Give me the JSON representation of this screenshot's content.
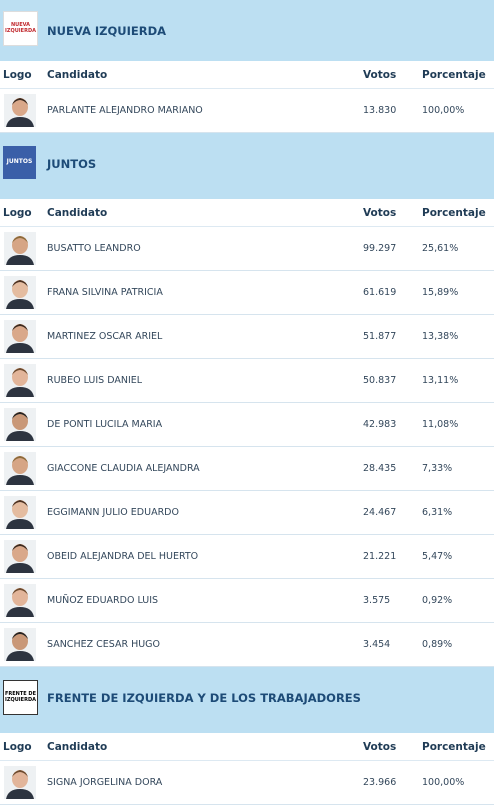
{
  "columns": [
    "Logo",
    "Candidato",
    "Votos",
    "Porcentaje"
  ],
  "parties": [
    {
      "name": "NUEVA IZQUIERDA",
      "logo_text": "NUEVA IZQUIERDA",
      "candidates": [
        {
          "name": "PARLANTE ALEJANDRO MARIANO",
          "votes": "13.830",
          "percent": "100,00%"
        }
      ]
    },
    {
      "name": "JUNTOS",
      "logo_text": "JUNTOS",
      "candidates": [
        {
          "name": "BUSATTO LEANDRO",
          "votes": "99.297",
          "percent": "25,61%"
        },
        {
          "name": "FRANA SILVINA PATRICIA",
          "votes": "61.619",
          "percent": "15,89%"
        },
        {
          "name": "MARTINEZ OSCAR ARIEL",
          "votes": "51.877",
          "percent": "13,38%"
        },
        {
          "name": "RUBEO LUIS DANIEL",
          "votes": "50.837",
          "percent": "13,11%"
        },
        {
          "name": "DE PONTI LUCILA MARIA",
          "votes": "42.983",
          "percent": "11,08%"
        },
        {
          "name": "GIACCONE CLAUDIA ALEJANDRA",
          "votes": "28.435",
          "percent": "7,33%"
        },
        {
          "name": "EGGIMANN JULIO EDUARDO",
          "votes": "24.467",
          "percent": "6,31%"
        },
        {
          "name": "OBEID ALEJANDRA DEL HUERTO",
          "votes": "21.221",
          "percent": "5,47%"
        },
        {
          "name": "MUÑOZ EDUARDO LUIS",
          "votes": "3.575",
          "percent": "0,92%"
        },
        {
          "name": "SANCHEZ CESAR HUGO",
          "votes": "3.454",
          "percent": "0,89%"
        }
      ]
    },
    {
      "name": "FRENTE DE IZQUIERDA Y DE LOS TRABAJADORES",
      "logo_text": "FRENTE DE IZQUIERDA",
      "candidates": [
        {
          "name": "SIGNA JORGELINA DORA",
          "votes": "23.966",
          "percent": "100,00%"
        }
      ]
    }
  ]
}
